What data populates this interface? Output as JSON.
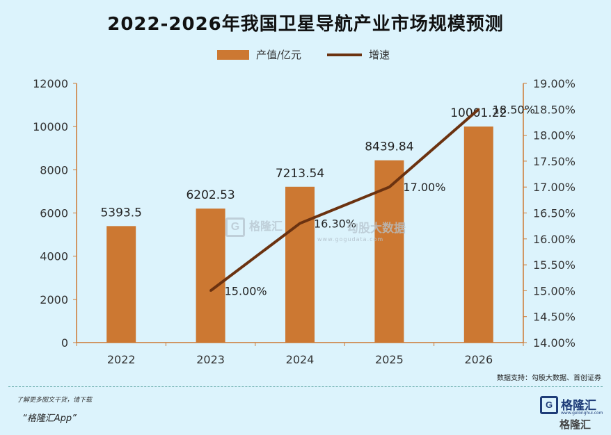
{
  "title": "2022-2026年我国卫星导航产业市场规模预测",
  "source_note": "数据支持：勾股大数据、首创证券",
  "promo": "了解更多图文干货，请下载",
  "promo_app": "“格隆汇App”",
  "brand": {
    "mark": "G",
    "name": "格隆汇",
    "url": "www.gelonghui.com",
    "name2": "格隆汇"
  },
  "watermark": {
    "mark": "G",
    "left": "格隆汇",
    "right": "勾股大数据",
    "url": "www.gogudata.com"
  },
  "colors": {
    "bar": "#cc7832",
    "line": "#6b3210",
    "axis": "#cc7832",
    "background": "#dcf3fc"
  },
  "chart_data": {
    "type": "bar",
    "categories": [
      "2022",
      "2023",
      "2024",
      "2025",
      "2026"
    ],
    "series": [
      {
        "name": "产值/亿元",
        "type": "bar",
        "axis": "left",
        "values": [
          5393.5,
          6202.53,
          7213.54,
          8439.84,
          10001.22
        ],
        "labels": [
          "5393.5",
          "6202.53",
          "7213.54",
          "8439.84",
          "10001.22"
        ]
      },
      {
        "name": "增速",
        "type": "line",
        "axis": "right",
        "values": [
          null,
          15.0,
          16.3,
          17.0,
          18.5
        ],
        "labels": [
          "",
          "15.00%",
          "16.30%",
          "17.00%",
          "18.50%"
        ]
      }
    ],
    "y_left": {
      "ylim": [
        0,
        12000
      ],
      "ticks": [
        "0",
        "2000",
        "4000",
        "6000",
        "8000",
        "10000",
        "12000"
      ]
    },
    "y_right": {
      "ylim": [
        14.0,
        19.0
      ],
      "ticks": [
        "14.00%",
        "14.50%",
        "15.00%",
        "15.50%",
        "16.00%",
        "16.50%",
        "17.00%",
        "17.50%",
        "18.00%",
        "18.50%",
        "19.00%"
      ]
    },
    "legend": "top-center",
    "grid": false
  }
}
